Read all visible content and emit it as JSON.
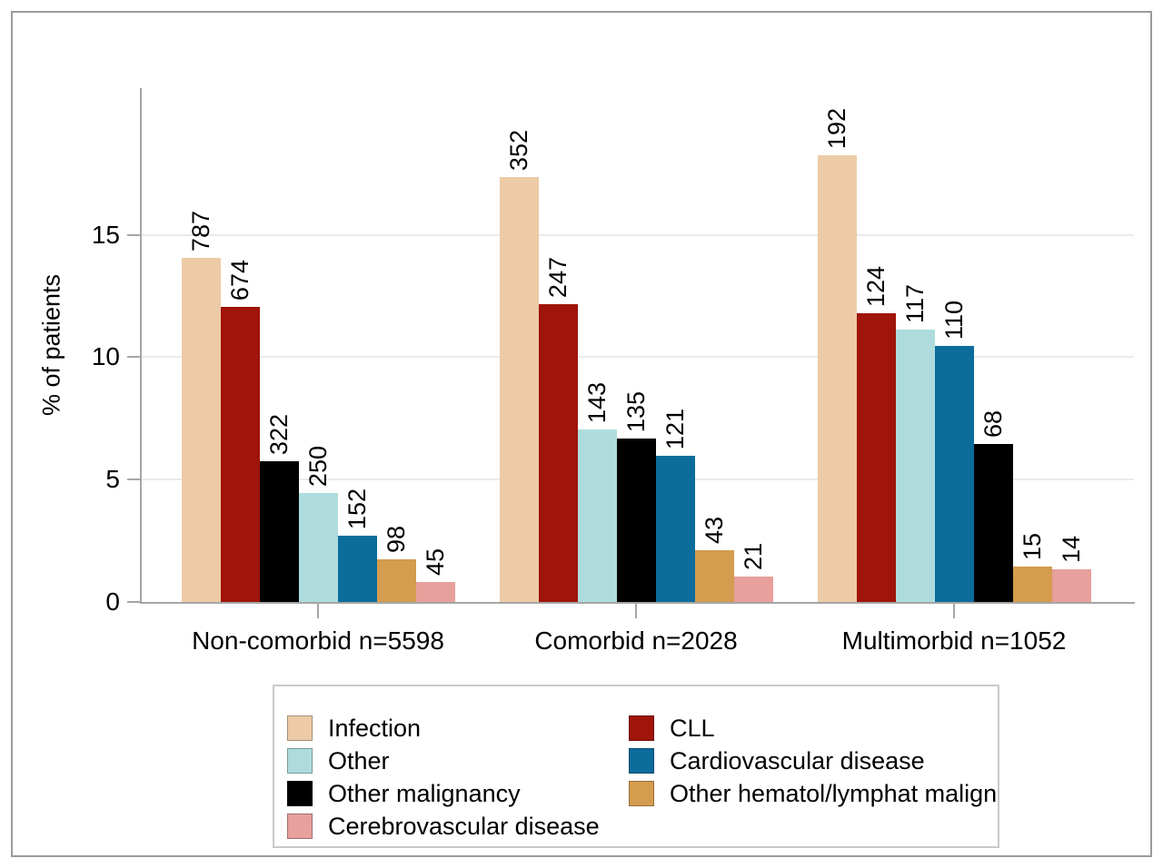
{
  "chart_data": {
    "type": "bar",
    "title": "",
    "xlabel": "",
    "ylabel": "% of patients",
    "ylim": [
      0,
      21
    ],
    "yticks": [
      0,
      5,
      10,
      15
    ],
    "grid": "horizontal gridlines at 5, 10, 15",
    "legend_position": "bottom boxed, two columns",
    "bar_label_style": "counts above bars, rotated 90 degrees reading bottom-to-top",
    "series_colors": {
      "Infection": "#EDCBA7",
      "CLL": "#A0140A",
      "Other": "#AEDCDC",
      "Other malignancy": "#000000",
      "Cardiovascular disease": "#0C6C9C",
      "Other hematol/lymphat malign": "#D49C4E",
      "Cerebrovascular disease": "#E7A09C"
    },
    "legend_columns": [
      [
        "Infection",
        "Other",
        "Other malignancy",
        "Cerebrovascular disease"
      ],
      [
        "CLL",
        "Cardiovascular disease",
        "Other hematol/lymphat malign"
      ]
    ],
    "groups": [
      {
        "label": "Non-comorbid n=5598",
        "bars": [
          {
            "category": "Infection",
            "count": 787,
            "pct": 14.06
          },
          {
            "category": "CLL",
            "count": 674,
            "pct": 12.04
          },
          {
            "category": "Other malignancy",
            "count": 322,
            "pct": 5.75
          },
          {
            "category": "Other",
            "count": 250,
            "pct": 4.47
          },
          {
            "category": "Cardiovascular disease",
            "count": 152,
            "pct": 2.72
          },
          {
            "category": "Other hematol/lymphat malign",
            "count": 98,
            "pct": 1.75
          },
          {
            "category": "Cerebrovascular disease",
            "count": 45,
            "pct": 0.8
          }
        ]
      },
      {
        "label": "Comorbid n=2028",
        "bars": [
          {
            "category": "Infection",
            "count": 352,
            "pct": 17.36
          },
          {
            "category": "CLL",
            "count": 247,
            "pct": 12.18
          },
          {
            "category": "Other",
            "count": 143,
            "pct": 7.05
          },
          {
            "category": "Other malignancy",
            "count": 135,
            "pct": 6.66
          },
          {
            "category": "Cardiovascular disease",
            "count": 121,
            "pct": 5.97
          },
          {
            "category": "Other hematol/lymphat malign",
            "count": 43,
            "pct": 2.12
          },
          {
            "category": "Cerebrovascular disease",
            "count": 21,
            "pct": 1.04
          }
        ]
      },
      {
        "label": "Multimorbid n=1052",
        "bars": [
          {
            "category": "Infection",
            "count": 192,
            "pct": 18.25
          },
          {
            "category": "CLL",
            "count": 124,
            "pct": 11.79
          },
          {
            "category": "Other",
            "count": 117,
            "pct": 11.12
          },
          {
            "category": "Cardiovascular disease",
            "count": 110,
            "pct": 10.46
          },
          {
            "category": "Other malignancy",
            "count": 68,
            "pct": 6.46
          },
          {
            "category": "Other hematol/lymphat malign",
            "count": 15,
            "pct": 1.43
          },
          {
            "category": "Cerebrovascular disease",
            "count": 14,
            "pct": 1.33
          }
        ]
      }
    ]
  },
  "style_colors": {
    "axis": "#a6a6a6",
    "gridline": "#eaeaea",
    "frame_border": "#9b9b9b",
    "legend_border": "#c9c9c9",
    "background": "#ffffff",
    "text": "#000000"
  }
}
